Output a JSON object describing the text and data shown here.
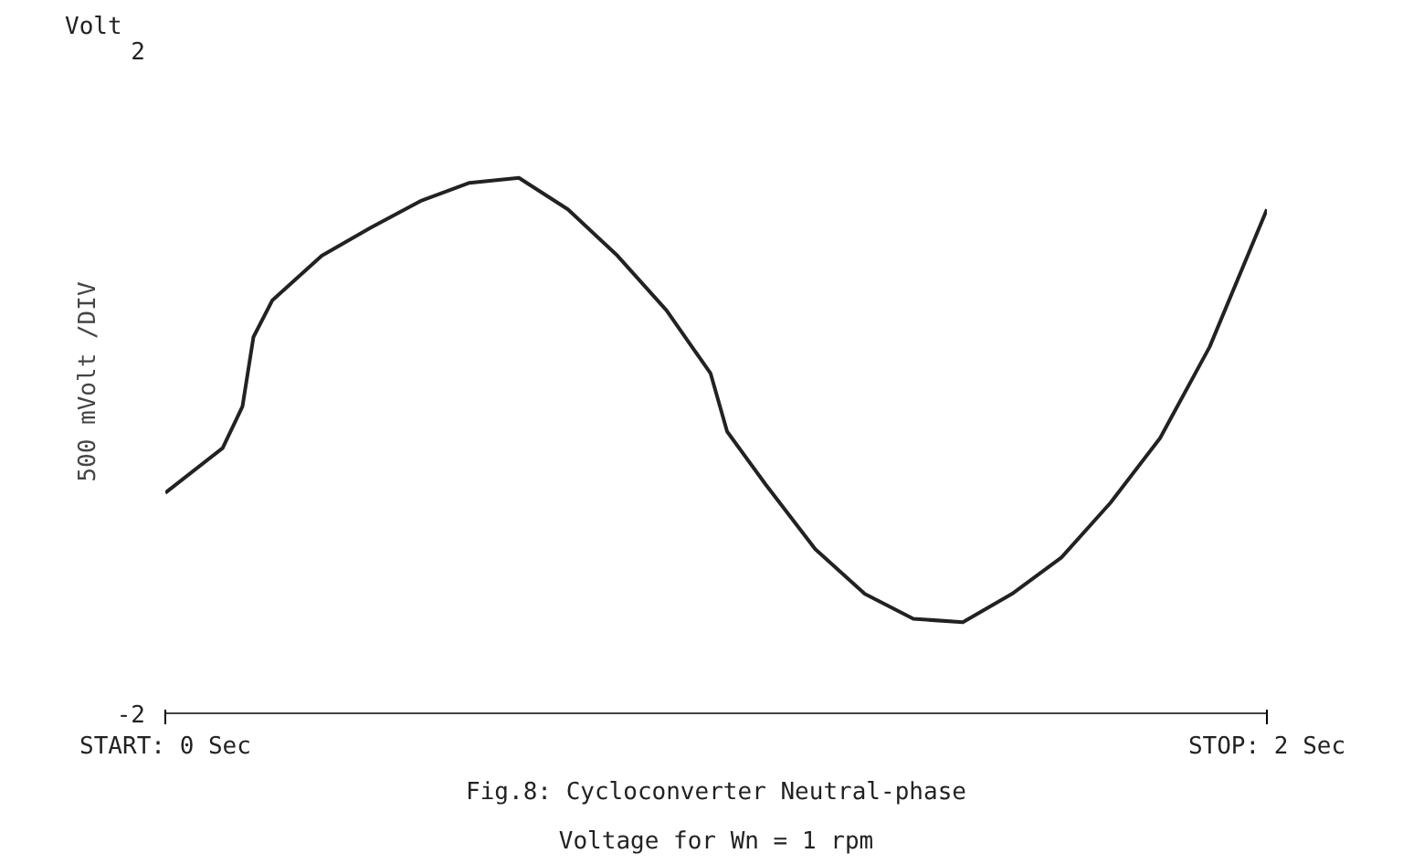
{
  "chart_data": {
    "type": "line",
    "title": "Fig.8: Cycloconverter Neutral-phase\nVoltage for Wn = 1 rpm",
    "ylabel": "500 mVolt /DIV",
    "annotations": [
      "Volt"
    ],
    "x": [
      0,
      0.104,
      0.14,
      0.16,
      0.194,
      0.284,
      0.373,
      0.463,
      0.552,
      0.642,
      0.731,
      0.821,
      0.91,
      0.99,
      1.02,
      1.09,
      1.18,
      1.27,
      1.358,
      1.448,
      1.537,
      1.627,
      1.716,
      1.806,
      1.896,
      2.0
    ],
    "series": [
      {
        "color": "#222222",
        "values": [
          -0.67,
          -0.4,
          -0.15,
          0.27,
          0.49,
          0.76,
          0.93,
          1.09,
          1.2,
          1.23,
          1.04,
          0.76,
          0.43,
          0.05,
          -0.3,
          -0.62,
          -1.01,
          -1.28,
          -1.43,
          -1.45,
          -1.28,
          -1.06,
          -0.73,
          -0.34,
          0.21,
          1.04
        ]
      }
    ],
    "xlim": [
      0,
      2
    ],
    "ylim": [
      -2,
      2
    ],
    "xticks": [
      {
        "value": 0,
        "label": "START: 0 Sec"
      },
      {
        "value": 2,
        "label": "STOP: 2 Sec"
      }
    ],
    "yticks": [
      2,
      -2
    ],
    "marker": "none",
    "line_style": "solid"
  }
}
